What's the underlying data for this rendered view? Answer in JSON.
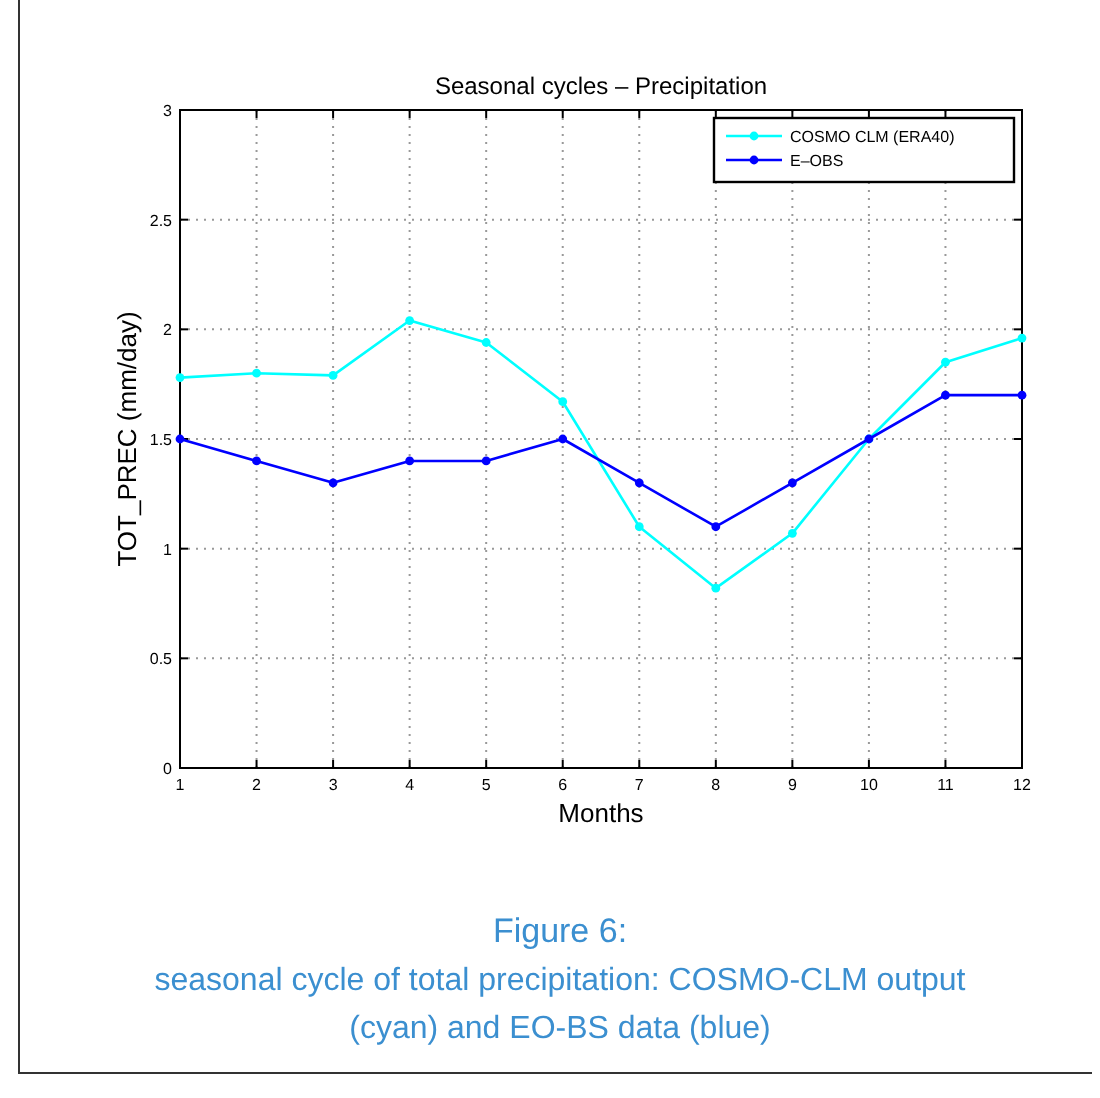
{
  "chart_data": {
    "type": "line",
    "title": "Seasonal cycles – Precipitation",
    "xlabel": "Months",
    "ylabel": "TOT_PREC (mm/day)",
    "x": [
      1,
      2,
      3,
      4,
      5,
      6,
      7,
      8,
      9,
      10,
      11,
      12
    ],
    "series": [
      {
        "name": "COSMO CLM (ERA40)",
        "color": "#00ffff",
        "values": [
          1.78,
          1.8,
          1.79,
          2.04,
          1.94,
          1.67,
          1.1,
          0.82,
          1.07,
          1.5,
          1.85,
          1.96
        ]
      },
      {
        "name": "E–OBS",
        "color": "#0000ff",
        "values": [
          1.5,
          1.4,
          1.3,
          1.4,
          1.4,
          1.5,
          1.3,
          1.1,
          1.3,
          1.5,
          1.7,
          1.7
        ]
      }
    ],
    "xlim": [
      1,
      12
    ],
    "xticks": [
      1,
      2,
      3,
      4,
      5,
      6,
      7,
      8,
      9,
      10,
      11,
      12
    ],
    "ylim": [
      0,
      3
    ],
    "yticks": [
      0,
      0.5,
      1,
      1.5,
      2,
      2.5,
      3
    ],
    "grid": true,
    "legend": "top right",
    "marker": "circle",
    "line_style": "solid",
    "annotations": [
      "Figure 6:",
      "seasonal cycle of total precipitation: COSMO-CLM output",
      "(cyan) and EO-BS data (blue)"
    ]
  }
}
